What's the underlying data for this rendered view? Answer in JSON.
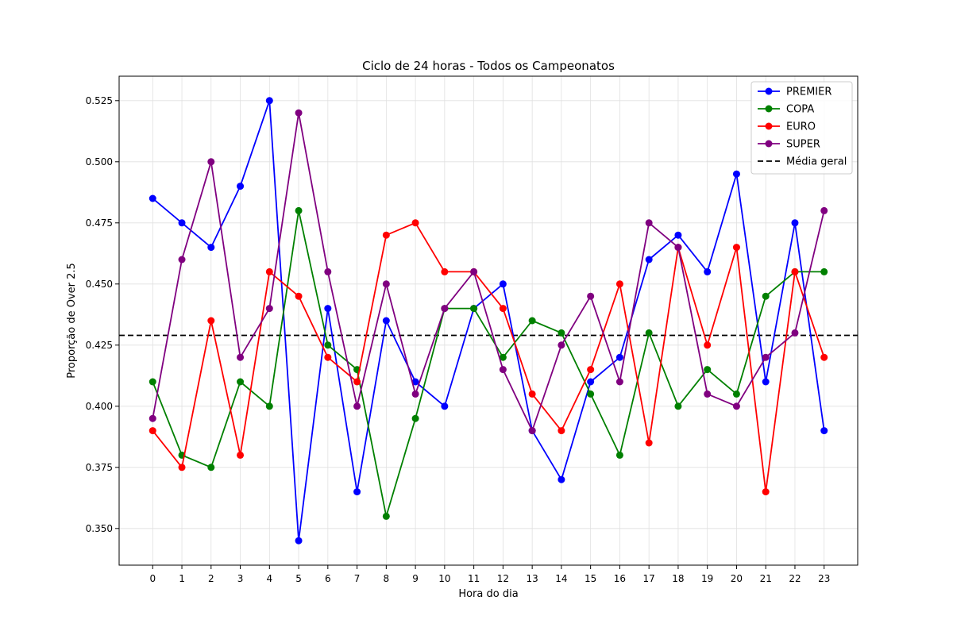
{
  "chart_data": {
    "type": "line",
    "title": "Ciclo de 24 horas - Todos os Campeonatos",
    "xlabel": "Hora do dia",
    "ylabel": "Proporção de Over 2.5",
    "x": [
      0,
      1,
      2,
      3,
      4,
      5,
      6,
      7,
      8,
      9,
      10,
      11,
      12,
      13,
      14,
      15,
      16,
      17,
      18,
      19,
      20,
      21,
      22,
      23
    ],
    "x_ticks": [
      "0",
      "1",
      "2",
      "3",
      "4",
      "5",
      "6",
      "7",
      "8",
      "9",
      "10",
      "11",
      "12",
      "13",
      "14",
      "15",
      "16",
      "17",
      "18",
      "19",
      "20",
      "21",
      "22",
      "23"
    ],
    "xlim": [
      -1.15,
      24.15
    ],
    "ylim": [
      0.335,
      0.535
    ],
    "y_ticks": [
      "0.350",
      "0.375",
      "0.400",
      "0.425",
      "0.450",
      "0.475",
      "0.500",
      "0.525"
    ],
    "grid": true,
    "legend_position": "top-right",
    "series": [
      {
        "name": "PREMIER",
        "color": "#0000ff",
        "values": [
          0.485,
          0.475,
          0.465,
          0.49,
          0.525,
          0.345,
          0.44,
          0.365,
          0.435,
          0.41,
          0.4,
          0.44,
          0.45,
          0.39,
          0.37,
          0.41,
          0.42,
          0.46,
          0.47,
          0.455,
          0.495,
          0.41,
          0.475,
          0.39
        ]
      },
      {
        "name": "COPA",
        "color": "#008000",
        "values": [
          0.41,
          0.38,
          0.375,
          0.41,
          0.4,
          0.48,
          0.425,
          0.415,
          0.355,
          0.395,
          0.44,
          0.44,
          0.42,
          0.435,
          0.43,
          0.405,
          0.38,
          0.43,
          0.4,
          0.415,
          0.405,
          0.445,
          0.455,
          0.455
        ]
      },
      {
        "name": "EURO",
        "color": "#ff0000",
        "values": [
          0.39,
          0.375,
          0.435,
          0.38,
          0.455,
          0.445,
          0.42,
          0.41,
          0.47,
          0.475,
          0.455,
          0.455,
          0.44,
          0.405,
          0.39,
          0.415,
          0.45,
          0.385,
          0.465,
          0.425,
          0.465,
          0.365,
          0.455,
          0.42
        ]
      },
      {
        "name": "SUPER",
        "color": "#800080",
        "values": [
          0.395,
          0.46,
          0.5,
          0.42,
          0.44,
          0.52,
          0.455,
          0.4,
          0.45,
          0.405,
          0.44,
          0.455,
          0.415,
          0.39,
          0.425,
          0.445,
          0.41,
          0.475,
          0.465,
          0.405,
          0.4,
          0.42,
          0.43,
          0.48
        ]
      }
    ],
    "reference_line": {
      "name": "Média geral",
      "value": 0.429,
      "color": "#000000",
      "style": "dashed"
    }
  }
}
